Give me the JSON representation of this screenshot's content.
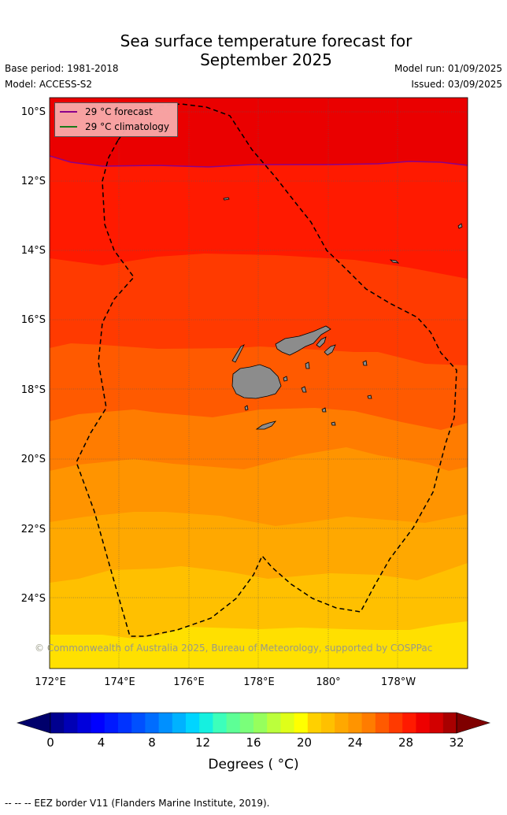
{
  "title_line1": "Sea surface temperature forecast for",
  "title_line2": "September 2025",
  "base_period": "Base period: 1981-2018",
  "model": "Model: ACCESS-S2",
  "model_run": "Model run: 01/09/2025",
  "issued": "Issued: 03/09/2025",
  "legend": {
    "forecast_label": "29 °C  forecast",
    "forecast_color": "#8b008b",
    "climatology_label": "29 °C  climatology",
    "climatology_color": "#1a7a1a"
  },
  "copyright": "© Commonwealth of Australia 2025, Bureau of Meteorology, supported by COSPPac",
  "lat_labels": [
    "10°S",
    "12°S",
    "14°S",
    "16°S",
    "18°S",
    "20°S",
    "22°S",
    "24°S"
  ],
  "lon_labels": [
    "172°E",
    "174°E",
    "176°E",
    "178°E",
    "180°",
    "178°W"
  ],
  "colorbar": {
    "tick_labels": [
      "0",
      "4",
      "8",
      "12",
      "16",
      "20",
      "24",
      "28",
      "32"
    ],
    "title": "Degrees ( °C)",
    "colors": [
      "#00008f",
      "#0000b5",
      "#0000dc",
      "#0000ff",
      "#0019ff",
      "#0033ff",
      "#0050ff",
      "#006dff",
      "#0090ff",
      "#00b2ff",
      "#00d5ff",
      "#15f0e0",
      "#3cffbb",
      "#5dff96",
      "#7aff7a",
      "#96ff5d",
      "#bbff3c",
      "#dfff19",
      "#ffff00",
      "#ffd000",
      "#ffc000",
      "#ffa800",
      "#ff9400",
      "#ff7c00",
      "#ff5a00",
      "#ff3a00",
      "#ff1a00",
      "#ee0000",
      "#d20000",
      "#a80000"
    ],
    "under_color": "#00006b",
    "over_color": "#7f0000"
  },
  "footnote": "--  --  -- EEZ border V11 (Flanders Marine Institute, 2019).",
  "map_data": {
    "band_colors": [
      "#ffe000",
      "#ffc000",
      "#ffa800",
      "#ff9400",
      "#ff7c00",
      "#ff5a00",
      "#ff3a00",
      "#ff1a00",
      "#ea0000"
    ],
    "land_color": "#8c8c8c"
  }
}
